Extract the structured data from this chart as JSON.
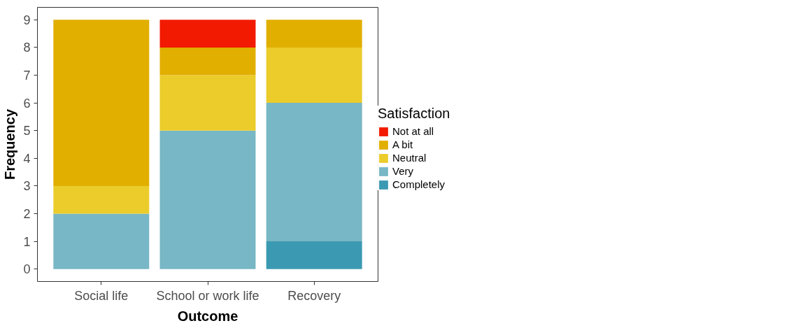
{
  "chart_data": {
    "type": "bar",
    "stacked": true,
    "xlabel": "Outcome",
    "ylabel": "Frequency",
    "legend_title": "Satisfaction",
    "categories": [
      "Social life",
      "School or work life",
      "Recovery"
    ],
    "series": [
      {
        "name": "Completely",
        "color": "#3b9ab2",
        "values": [
          0,
          0,
          1
        ]
      },
      {
        "name": "Very",
        "color": "#78b7c5",
        "values": [
          2,
          5,
          5
        ]
      },
      {
        "name": "Neutral",
        "color": "#ebcc2a",
        "values": [
          1,
          2,
          2
        ]
      },
      {
        "name": "A bit",
        "color": "#e1af00",
        "values": [
          6,
          1,
          1
        ]
      },
      {
        "name": "Not at all",
        "color": "#f21a00",
        "values": [
          0,
          1,
          0
        ]
      }
    ],
    "ylim": [
      -0.45,
      9.45
    ],
    "yticks": [
      0,
      1,
      2,
      3,
      4,
      5,
      6,
      7,
      8,
      9
    ],
    "grid": false,
    "legend": "right"
  }
}
